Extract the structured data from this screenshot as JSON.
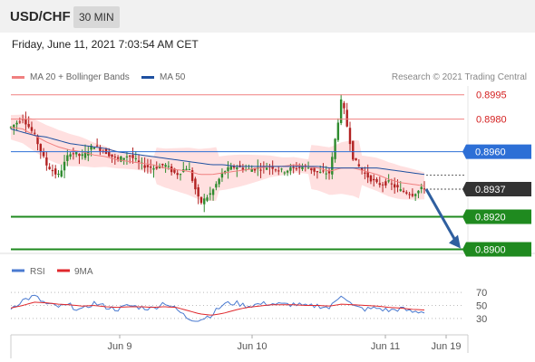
{
  "header": {
    "symbol": "USD/CHF",
    "timeframe": "30 MIN"
  },
  "datetime": "Friday, June 11, 2021 7:03:54 AM CET",
  "legend": {
    "ma20_label": "MA 20 + Bollinger Bands",
    "ma50_label": "MA 50",
    "copyright": "Research © 2021 Trading Central"
  },
  "colors": {
    "bull": "#2e8b2e",
    "bear": "#b22222",
    "ma20": "#f08080",
    "ma50": "#1e50a0",
    "band_fill": "#ffd6d6",
    "level_red": "#f08080",
    "support_green": "#1f8a1f",
    "pivot_blue": "#2d6fd6",
    "current": "#333333",
    "arrow": "#2f5f9f",
    "rsi": "#4a7ad0",
    "rsi_ma": "#e0282c"
  },
  "chart_data": [
    {
      "type": "candlestick",
      "title": "",
      "xlabel": "",
      "ylabel": "",
      "ylim": [
        0.88975,
        0.90004
      ],
      "x_ticks": [
        "Jun 9",
        "Jun 10",
        "Jun 11",
        "Jun 19"
      ],
      "levels": [
        {
          "value": 0.8995,
          "label": "0.8995",
          "style": "red-line"
        },
        {
          "value": 0.898,
          "label": "0.8980",
          "style": "red-line"
        },
        {
          "value": 0.896,
          "label": "0.8960",
          "style": "blue-box"
        },
        {
          "value": 0.8937,
          "label": "0.8937",
          "style": "current-dark-box"
        },
        {
          "value": 0.892,
          "label": "0.8920",
          "style": "green-box"
        },
        {
          "value": 0.89,
          "label": "0.8900",
          "style": "green-box"
        }
      ],
      "forecast_arrow": {
        "from": 0.8937,
        "to": 0.89,
        "direction": "down"
      },
      "legend": [
        "MA 20 + Bollinger Bands",
        "MA 50"
      ],
      "grid": false,
      "series": [
        {
          "name": "price_path",
          "values": [
            0.8975,
            0.8981,
            0.897,
            0.8952,
            0.8945,
            0.896,
            0.8957,
            0.8964,
            0.896,
            0.8955,
            0.8958,
            0.8952,
            0.895,
            0.8952,
            0.8946,
            0.8951,
            0.8928,
            0.8935,
            0.8948,
            0.8951,
            0.8949,
            0.895,
            0.8951,
            0.8948,
            0.895,
            0.8951,
            0.8947,
            0.8947,
            0.8993,
            0.8955,
            0.8946,
            0.894,
            0.8941,
            0.8936,
            0.8934,
            0.8938
          ]
        },
        {
          "name": "MA 20",
          "values": [
            0.8975,
            0.8974,
            0.897,
            0.8966,
            0.8963,
            0.8961,
            0.896,
            0.8958,
            0.8957,
            0.8955,
            0.8954,
            0.8953,
            0.8952,
            0.895,
            0.8949,
            0.8948,
            0.8946,
            0.8946,
            0.8947,
            0.8948,
            0.8949,
            0.895,
            0.8951,
            0.8951,
            0.8952,
            0.8951,
            0.895,
            0.8948,
            0.895,
            0.895,
            0.8948,
            0.8946,
            0.8943,
            0.8941,
            0.894,
            0.8939
          ]
        },
        {
          "name": "MA 50",
          "values": [
            0.8974,
            0.8972,
            0.897,
            0.8969,
            0.8967,
            0.8965,
            0.8964,
            0.8963,
            0.8962,
            0.896,
            0.8959,
            0.8958,
            0.8957,
            0.8956,
            0.8955,
            0.8954,
            0.8953,
            0.8952,
            0.8952,
            0.8951,
            0.8951,
            0.8951,
            0.8951,
            0.8951,
            0.8951,
            0.8951,
            0.8951,
            0.895,
            0.895,
            0.895,
            0.895,
            0.895,
            0.8949,
            0.8948,
            0.8947,
            0.8946
          ]
        }
      ]
    },
    {
      "type": "line",
      "title": "",
      "legend": [
        "RSI",
        "9MA"
      ],
      "ylim": [
        16,
        84
      ],
      "y_ticks": [
        70,
        50,
        30
      ],
      "grid": true,
      "series": [
        {
          "name": "RSI",
          "values": [
            46,
            58,
            64,
            52,
            48,
            50,
            42,
            54,
            48,
            44,
            50,
            47,
            45,
            55,
            44,
            30,
            28,
            36,
            52,
            54,
            49,
            52,
            53,
            51,
            52,
            48,
            50,
            46,
            68,
            48,
            44,
            46,
            42,
            45,
            40,
            41
          ]
        },
        {
          "name": "9MA",
          "values": [
            46,
            50,
            55,
            54,
            52,
            51,
            49,
            50,
            48,
            47,
            48,
            48,
            47,
            48,
            47,
            42,
            37,
            35,
            38,
            43,
            47,
            49,
            51,
            51,
            51,
            50,
            50,
            49,
            52,
            51,
            50,
            49,
            47,
            46,
            44,
            43
          ]
        }
      ]
    }
  ]
}
